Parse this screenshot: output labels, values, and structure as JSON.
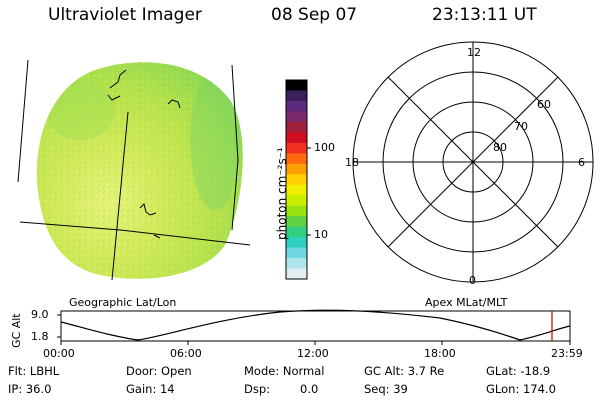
{
  "header": {
    "instrument": "Ultraviolet Imager",
    "date": "08 Sep 07",
    "time": "23:13:11 UT"
  },
  "image_panel": {
    "caption": "Geographic Lat/Lon"
  },
  "colorbar": {
    "unit_label": "photon cm⁻²s⁻¹",
    "tick_labels": [
      "100",
      "10"
    ],
    "colors": [
      "#000000",
      "#3a1f5a",
      "#5b2a7f",
      "#7b2a6b",
      "#a0203a",
      "#d01020",
      "#f03020",
      "#ff6a10",
      "#ffa000",
      "#ffd000",
      "#f0f000",
      "#c8ef00",
      "#98e010",
      "#60d040",
      "#30d080",
      "#30d0c0",
      "#70d8e0",
      "#b0e4ec",
      "#e0eef0"
    ]
  },
  "polar_plot": {
    "caption": "Apex MLat/MLT",
    "mlt_labels": {
      "top": "12",
      "right": "6",
      "bottom": "0",
      "left": "18"
    },
    "mlat_labels": [
      "60",
      "70",
      "80"
    ]
  },
  "altitude_plot": {
    "ylabel": "GC Alt",
    "y_ticks": [
      "9.0",
      "1.8"
    ],
    "x_ticks": [
      "00:00",
      "06:00",
      "12:00",
      "18:00",
      "23:59"
    ]
  },
  "info": {
    "filter": "Flt: LBHL",
    "ip": "IP: 36.0",
    "door": "Door: Open",
    "gain": "Gain: 14",
    "mode": "Mode: Normal",
    "dsp_label": "Dsp:",
    "dsp_value": "0.0",
    "gc_alt": "GC Alt: 3.7 Re",
    "seq": "Seq: 39",
    "glat": "GLat: -18.9",
    "glon": "GLon: 174.0"
  }
}
